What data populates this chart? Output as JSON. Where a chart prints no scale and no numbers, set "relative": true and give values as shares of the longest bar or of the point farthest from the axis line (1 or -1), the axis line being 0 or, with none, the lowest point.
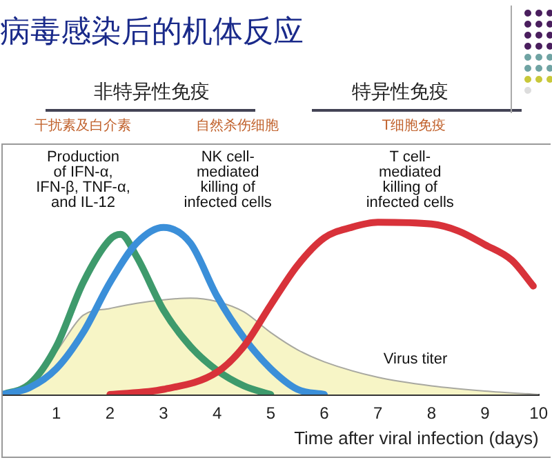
{
  "chart_data": {
    "type": "line",
    "title": "病毒感染后的机体反应",
    "relative": true,
    "xlabel": "Time after viral infection (days)",
    "xlim": [
      0,
      10
    ],
    "xticks": [
      1,
      2,
      3,
      4,
      5,
      6,
      7,
      8,
      9,
      10
    ],
    "grid": false,
    "legend": false,
    "marker": "none",
    "line_style": "solid",
    "annotations": [
      "非特异性免疫",
      "特异性免疫",
      "干扰素及白介素",
      "自然杀伤细胞",
      "T细胞免疫"
    ],
    "series": [
      {
        "type": "area",
        "name": "Virus titer",
        "color": "#f7f5c6",
        "x": [
          0,
          0.5,
          1,
          1.5,
          2,
          2.5,
          3,
          3.5,
          4,
          4.5,
          5,
          5.5,
          6,
          7,
          8,
          9,
          10
        ],
        "values": [
          0,
          0.08,
          0.25,
          0.46,
          0.5,
          0.53,
          0.55,
          0.56,
          0.54,
          0.48,
          0.36,
          0.26,
          0.19,
          0.1,
          0.05,
          0.02,
          0
        ]
      },
      {
        "name": "Production\nof IFN-α,\nIFN-β, TNF-α,\nand IL-12",
        "color": "#3e9a6c",
        "x": [
          0,
          0.5,
          1,
          1.5,
          2,
          2.2,
          2.5,
          3,
          3.5,
          4,
          4.5,
          5
        ],
        "values": [
          0,
          0.06,
          0.28,
          0.65,
          0.9,
          0.93,
          0.8,
          0.49,
          0.28,
          0.14,
          0.05,
          0
        ]
      },
      {
        "name": "NK cell-\nmediated\nkilling of\ninfected cells",
        "color": "#3b8fd9",
        "x": [
          0,
          0.5,
          1,
          1.5,
          2,
          2.5,
          3,
          3.5,
          4,
          4.5,
          5,
          5.5,
          6
        ],
        "values": [
          0,
          0.04,
          0.15,
          0.36,
          0.65,
          0.88,
          0.97,
          0.88,
          0.57,
          0.33,
          0.15,
          0.03,
          0
        ]
      },
      {
        "name": "T cell-\nmediated\nkilling of\ninfected cells",
        "color": "#d8323a",
        "x": [
          2,
          3,
          4,
          4.5,
          5,
          5.5,
          6,
          6.5,
          7,
          8,
          8.5,
          9,
          9.5,
          9.9
        ],
        "values": [
          0,
          0.03,
          0.13,
          0.28,
          0.52,
          0.75,
          0.91,
          0.97,
          1,
          0.99,
          0.95,
          0.87,
          0.78,
          0.63
        ]
      }
    ]
  }
}
